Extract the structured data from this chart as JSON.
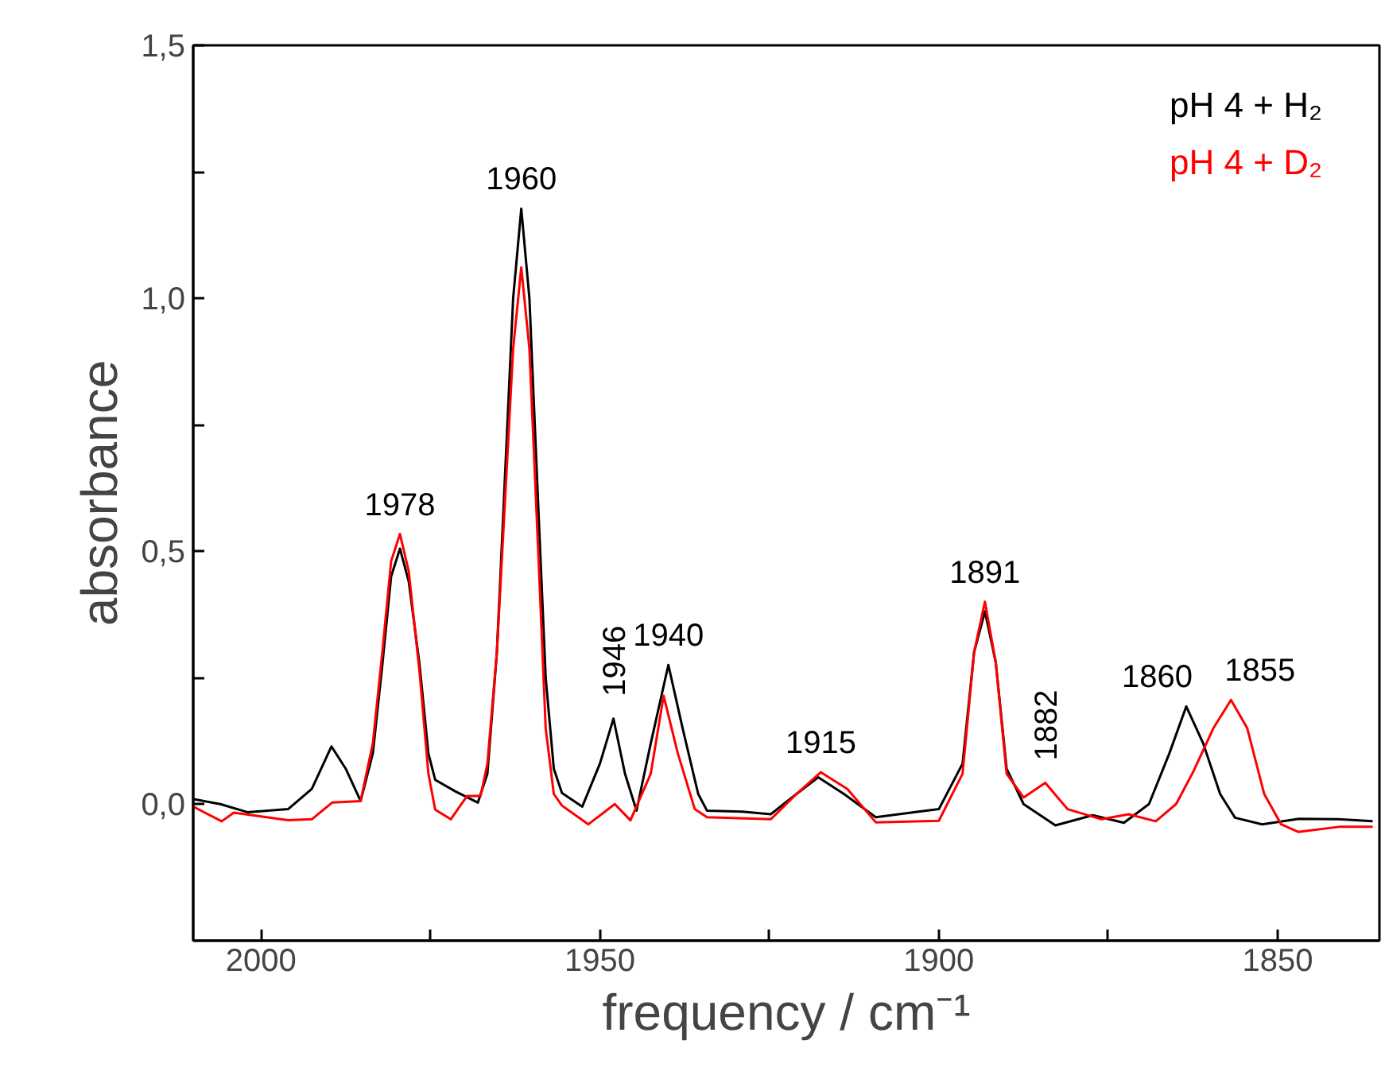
{
  "chart_data": {
    "type": "line",
    "xlabel": "frequency / cm⁻¹",
    "ylabel": "absorbance",
    "xlim": [
      2010,
      1835
    ],
    "ylim": [
      -0.27,
      1.5
    ],
    "xticks": [
      2000,
      {
        "value": 1975,
        "label": null
      },
      1950,
      {
        "value": 1925,
        "label": null
      },
      1900,
      {
        "value": 1875,
        "label": null
      },
      1850
    ],
    "yticks": [
      {
        "value": 0,
        "label": "0,0"
      },
      {
        "value": 0.25,
        "label": null
      },
      {
        "value": 0.5,
        "label": "0,5"
      },
      {
        "value": 0.75,
        "label": null
      },
      {
        "value": 1,
        "label": "1,0"
      },
      {
        "value": 1.25,
        "label": null
      },
      {
        "value": 1.5,
        "label": "1,5"
      }
    ],
    "grid": false,
    "legend": "top right",
    "marker": "none",
    "line_style": "solid",
    "series": [
      {
        "name": "pH 4 + H₂",
        "color": "#000000",
        "x": [
          2010,
          2006,
          2002,
          1996,
          1992.5,
          1989.6,
          1987.5,
          1985.3,
          1983.5,
          1982.1,
          1980.8,
          1979.5,
          1978.2,
          1976.6,
          1975.3,
          1974.3,
          1971.3,
          1968,
          1966.6,
          1965.2,
          1964.2,
          1962.8,
          1961.6,
          1960.4,
          1959.1,
          1958,
          1956.8,
          1955.6,
          1952.6,
          1950,
          1948,
          1946.3,
          1944.6,
          1942.5,
          1939.9,
          1937.8,
          1935.5,
          1934.2,
          1929,
          1924.8,
          1921,
          1917.8,
          1914,
          1909.3,
          1903,
          1900,
          1896.5,
          1894.8,
          1893.2,
          1891.6,
          1890,
          1887.5,
          1882.8,
          1877.3,
          1872.7,
          1869,
          1866,
          1863.5,
          1861,
          1858.5,
          1856.3,
          1852.3,
          1846.9,
          1841,
          1836
        ],
        "values": [
          0.01,
          0.0,
          -0.016,
          -0.01,
          0.03,
          0.114,
          0.07,
          0.006,
          0.1,
          0.275,
          0.45,
          0.505,
          0.44,
          0.275,
          0.1,
          0.048,
          0.025,
          0.003,
          0.06,
          0.3,
          0.59,
          1.0,
          1.177,
          1.0,
          0.59,
          0.25,
          0.07,
          0.022,
          -0.005,
          0.08,
          0.169,
          0.06,
          -0.013,
          0.12,
          0.275,
          0.15,
          0.02,
          -0.013,
          -0.015,
          -0.02,
          0.02,
          0.053,
          0.02,
          -0.026,
          -0.015,
          -0.01,
          0.08,
          0.3,
          0.381,
          0.28,
          0.07,
          0.0,
          -0.042,
          -0.022,
          -0.037,
          0.0,
          0.1,
          0.193,
          0.12,
          0.02,
          -0.027,
          -0.04,
          -0.029,
          -0.03,
          -0.034
        ]
      },
      {
        "name": "pH 4 + D₂",
        "color": "#ff0000",
        "x": [
          2010,
          2005.8,
          2004,
          1996,
          1992.5,
          1989.5,
          1985.3,
          1983.5,
          1982.1,
          1980.8,
          1979.5,
          1978.2,
          1976.6,
          1975.3,
          1974.3,
          1972,
          1969.6,
          1967.6,
          1966.6,
          1965.2,
          1964.2,
          1962.8,
          1961.6,
          1960.4,
          1959.1,
          1958,
          1956.8,
          1955.6,
          1951.7,
          1947.8,
          1945.5,
          1942.5,
          1940.6,
          1938.5,
          1936,
          1934.2,
          1924.8,
          1921,
          1917.4,
          1913.5,
          1909.3,
          1900,
          1896.5,
          1894.8,
          1893.2,
          1891.6,
          1890,
          1887.5,
          1884.3,
          1881,
          1876,
          1872,
          1868,
          1865,
          1862.5,
          1859.5,
          1856.9,
          1854.5,
          1852,
          1849.5,
          1847,
          1841,
          1836
        ],
        "values": [
          -0.005,
          -0.034,
          -0.017,
          -0.032,
          -0.03,
          0.003,
          0.006,
          0.12,
          0.3,
          0.48,
          0.534,
          0.46,
          0.26,
          0.06,
          -0.011,
          -0.03,
          0.016,
          0.016,
          0.08,
          0.3,
          0.55,
          0.9,
          1.061,
          0.9,
          0.5,
          0.15,
          0.02,
          -0.003,
          -0.04,
          0.0,
          -0.032,
          0.06,
          0.214,
          0.1,
          -0.01,
          -0.026,
          -0.03,
          0.02,
          0.063,
          0.03,
          -0.036,
          -0.033,
          0.06,
          0.3,
          0.4,
          0.28,
          0.06,
          0.013,
          0.042,
          -0.01,
          -0.03,
          -0.02,
          -0.034,
          0.0,
          0.063,
          0.15,
          0.206,
          0.15,
          0.02,
          -0.04,
          -0.055,
          -0.045,
          -0.045
        ]
      }
    ],
    "annotations": [
      {
        "text": "1978",
        "x": 1979.5,
        "y": 0.534
      },
      {
        "text": "1960",
        "x": 1961.6,
        "y": 1.177
      },
      {
        "text": "1946",
        "x": 1948,
        "y": 0.169
      },
      {
        "text": "1940",
        "x": 1939.9,
        "y": 0.275
      },
      {
        "text": "1915",
        "x": 1917.4,
        "y": 0.063
      },
      {
        "text": "1891",
        "x": 1893.2,
        "y": 0.4
      },
      {
        "text": "1882",
        "x": 1884.3,
        "y": 0.042
      },
      {
        "text": "1860",
        "x": 1863.5,
        "y": 0.193
      },
      {
        "text": "1855",
        "x": 1856.9,
        "y": 0.206
      }
    ]
  }
}
